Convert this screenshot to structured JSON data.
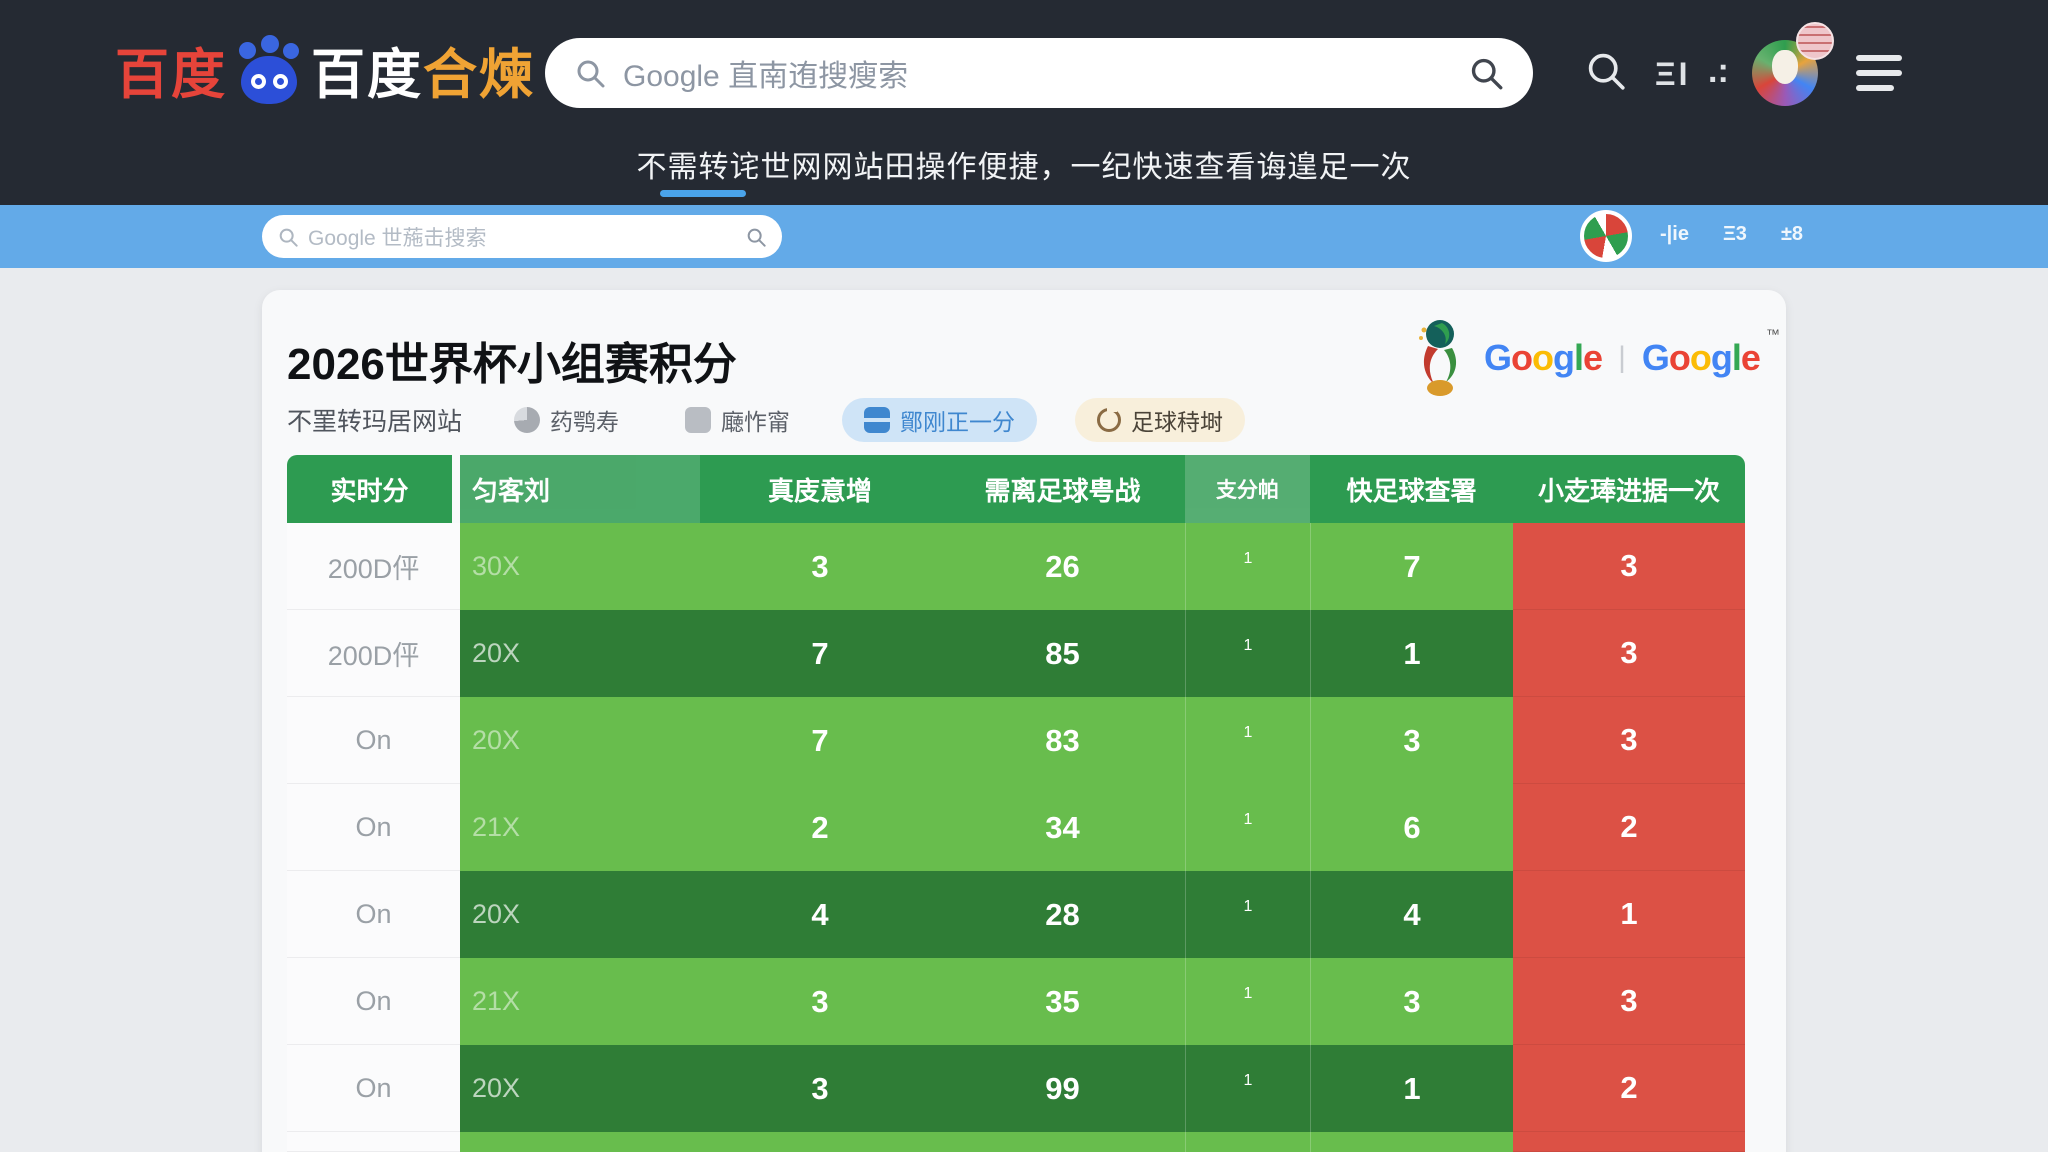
{
  "topnav": {
    "logo": {
      "baidu_red": "百度",
      "baidu_white": "百度",
      "suffix_gold": "合煉"
    },
    "search": {
      "placeholder": "Google 直南迶搜瘦索"
    },
    "icons": {
      "layout_glyph": "ΞI",
      "dots_glyph": ".:"
    }
  },
  "banner": {
    "subtitle": "不需转诧世网网站田操作便捷，一纪快速查看诲遑足一次"
  },
  "bluebar": {
    "search_placeholder": "Google 世葹击搜索",
    "links": [
      "-|ie",
      "Ξ3",
      "±8"
    ]
  },
  "card": {
    "title": "2026世界杯小组赛积分",
    "gray_note": "不罣转玛居网站",
    "chips": [
      {
        "label": "药鹗寿"
      },
      {
        "label": "廰怍甯"
      },
      {
        "label": "鄮刚正一分"
      },
      {
        "label": "足球秲埘"
      }
    ],
    "brand": {
      "google1": "Google",
      "google2": "Google",
      "tm": "™",
      "separator": "|"
    }
  },
  "table": {
    "headers": [
      "实时分",
      "匀客刘",
      "真庋意增",
      "需离足球甹战",
      "支分帕",
      "快足球查署",
      "小赱琫进据一次"
    ],
    "rows": [
      {
        "c1": "200D伻",
        "c2": "30X",
        "c3": "3",
        "c4": "26",
        "c5": "1",
        "c6": "7",
        "c7": "3",
        "dark": false
      },
      {
        "c1": "200D伻",
        "c2": "20X",
        "c3": "7",
        "c4": "85",
        "c5": "1",
        "c6": "1",
        "c7": "3",
        "dark": true
      },
      {
        "c1": "On",
        "c2": "20X",
        "c3": "7",
        "c4": "83",
        "c5": "1",
        "c6": "3",
        "c7": "3",
        "dark": false
      },
      {
        "c1": "On",
        "c2": "21X",
        "c3": "2",
        "c4": "34",
        "c5": "1",
        "c6": "6",
        "c7": "2",
        "dark": false
      },
      {
        "c1": "On",
        "c2": "20X",
        "c3": "4",
        "c4": "28",
        "c5": "1",
        "c6": "4",
        "c7": "1",
        "dark": true
      },
      {
        "c1": "On",
        "c2": "21X",
        "c3": "3",
        "c4": "35",
        "c5": "1",
        "c6": "3",
        "c7": "3",
        "dark": false
      },
      {
        "c1": "On",
        "c2": "20X",
        "c3": "3",
        "c4": "99",
        "c5": "1",
        "c6": "1",
        "c7": "2",
        "dark": true
      }
    ]
  },
  "colors": {
    "navy": "#252a33",
    "blue_bar": "#63aae8",
    "page_bg": "#e9ebee",
    "card_bg": "#f8f9fa",
    "green_header": "#2d9b51",
    "green_light": "#68bd4d",
    "green_dark": "#2f7d36",
    "red_column": "#dc5145",
    "accent_blue": "#4aa3ea",
    "google_palette": [
      "#4285F4",
      "#EA4335",
      "#FBBC05",
      "#4285F4",
      "#34A853",
      "#EA4335"
    ]
  }
}
